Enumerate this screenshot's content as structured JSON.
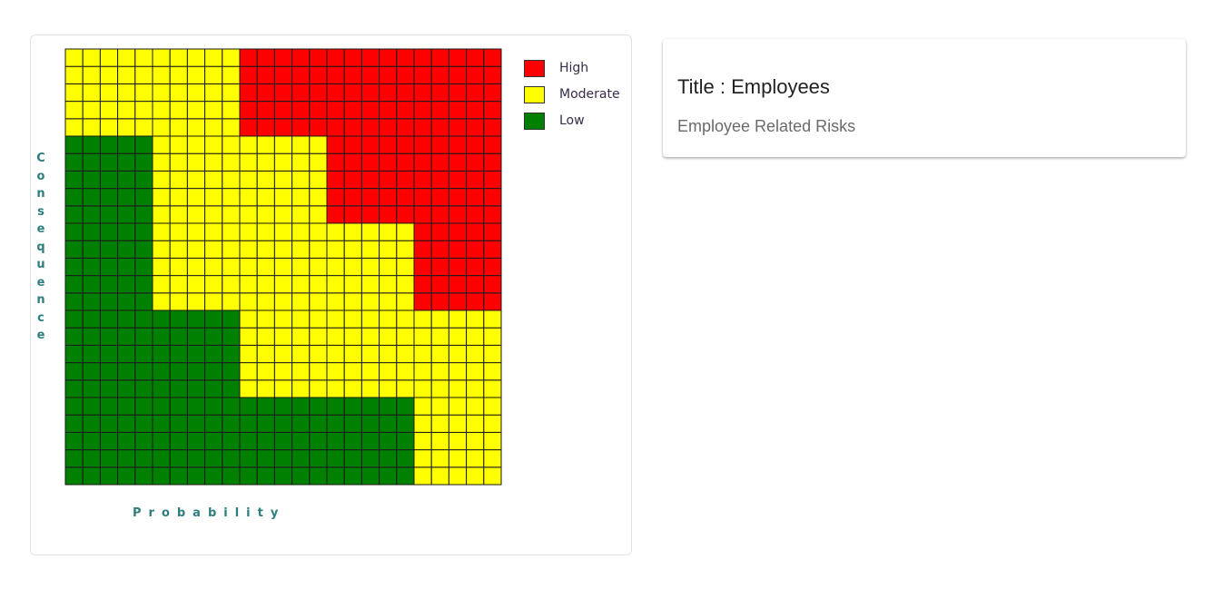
{
  "chart_data": {
    "type": "heatmap",
    "xlabel": "Probability",
    "ylabel": "Consequence",
    "cols": 25,
    "rows": 25,
    "colors": {
      "High": "#ff0000",
      "Moderate": "#ffff00",
      "Low": "#008000"
    },
    "legend": [
      "High",
      "Moderate",
      "Low"
    ],
    "legend_position": "top-right",
    "grid": true,
    "regions": [
      {
        "level": "Low",
        "cells": [
          [
            0,
            5,
            0,
            20
          ],
          [
            5,
            10,
            0,
            10
          ],
          [
            10,
            20,
            0,
            5
          ]
        ]
      },
      {
        "level": "High",
        "cells": [
          [
            10,
            15,
            20,
            25
          ],
          [
            15,
            20,
            15,
            25
          ],
          [
            20,
            25,
            10,
            25
          ]
        ]
      }
    ],
    "default_level": "Moderate"
  },
  "card": {
    "title": "Title : Employees",
    "subtitle": "Employee Related Risks"
  }
}
